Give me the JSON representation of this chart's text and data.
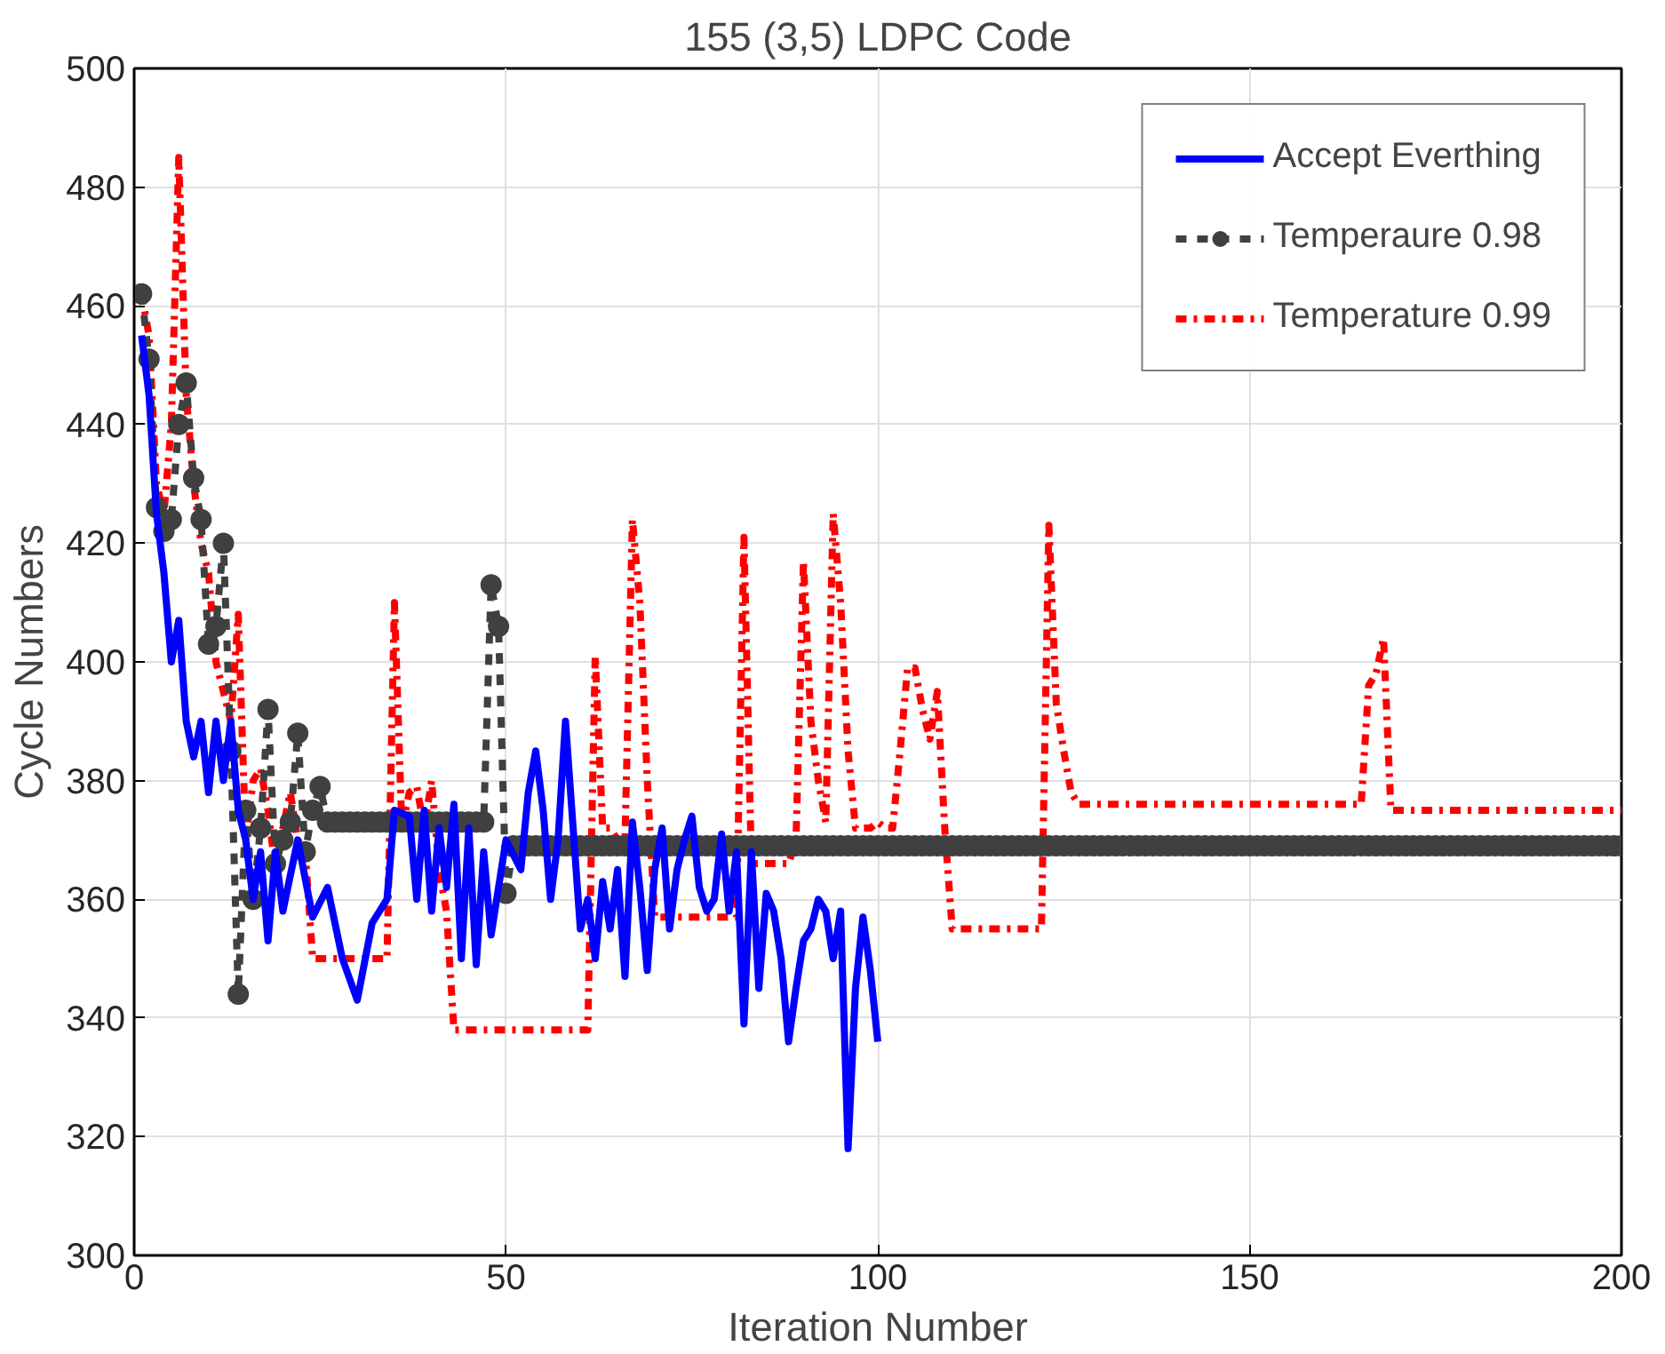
{
  "chart_data": {
    "type": "line",
    "title": "155 (3,5) LDPC Code",
    "xlabel": "Iteration Number",
    "ylabel": "Cycle Numbers",
    "xlim": [
      0,
      200
    ],
    "xticks": [
      0,
      50,
      100,
      150,
      200
    ],
    "ylim": [
      300,
      500
    ],
    "yticks": [
      300,
      320,
      340,
      360,
      380,
      400,
      420,
      440,
      460,
      480,
      500
    ],
    "grid": true,
    "legend": "top right",
    "x": [
      1,
      2,
      3,
      4,
      5,
      6,
      7,
      8,
      9,
      10,
      11,
      12,
      13,
      14,
      15,
      16,
      17,
      18,
      19,
      20,
      21,
      22,
      23,
      24,
      25,
      26,
      27,
      28,
      29,
      30,
      31,
      32,
      33,
      34,
      35,
      36,
      37,
      38,
      39,
      40,
      41,
      42,
      43,
      44,
      45,
      46,
      47,
      48,
      49,
      50,
      51,
      52,
      53,
      54,
      55,
      56,
      57,
      58,
      59,
      60,
      61,
      62,
      63,
      64,
      65,
      66,
      67,
      68,
      69,
      70,
      71,
      72,
      73,
      74,
      75,
      76,
      77,
      78,
      79,
      80,
      81,
      82,
      83,
      84,
      85,
      86,
      87,
      88,
      89,
      90,
      91,
      92,
      93,
      94,
      95,
      96,
      97,
      98,
      99,
      100,
      101,
      102,
      103,
      104,
      105,
      106,
      107,
      108,
      109,
      110,
      111,
      112,
      113,
      114,
      115,
      116,
      117,
      118,
      119,
      120,
      121,
      122,
      123,
      124,
      125,
      126,
      127,
      128,
      129,
      130,
      131,
      132,
      133,
      134,
      135,
      136,
      137,
      138,
      139,
      140,
      141,
      142,
      143,
      144,
      145,
      146,
      147,
      148,
      149,
      150,
      151,
      152,
      153,
      154,
      155,
      156,
      157,
      158,
      159,
      160,
      161,
      162,
      163,
      164,
      165,
      166,
      167,
      168,
      169,
      170,
      171,
      172,
      173,
      174,
      175,
      176,
      177,
      178,
      179,
      180,
      181,
      182,
      183,
      184,
      185,
      186,
      187,
      188,
      189,
      190,
      191,
      192,
      193,
      194,
      195,
      196,
      197,
      198,
      199,
      200
    ],
    "series": [
      {
        "name": "Accept Everthing",
        "color": "#0000ff",
        "line_style": "solid",
        "marker": "none",
        "x": [
          1,
          2,
          3,
          4,
          5,
          6,
          7,
          8,
          9,
          10,
          11,
          12,
          13,
          14,
          15,
          16,
          17,
          18,
          19,
          20,
          22,
          24,
          26,
          28,
          30,
          32,
          34,
          35,
          37,
          38,
          39,
          40,
          41,
          42,
          43,
          44,
          45,
          46,
          47,
          48,
          50,
          52,
          53,
          54,
          55,
          56,
          57,
          58,
          60,
          61,
          62,
          63,
          64,
          65,
          66,
          67,
          68,
          69,
          70,
          71,
          72,
          73,
          74,
          75,
          76,
          77,
          78,
          79,
          80,
          81,
          82,
          83,
          84,
          85,
          86,
          87,
          88,
          89,
          90,
          91,
          92,
          93,
          94,
          95,
          96,
          97,
          98,
          99,
          100
        ],
        "values": [
          455,
          445,
          425,
          415,
          400,
          407,
          390,
          384,
          390,
          378,
          390,
          380,
          390,
          375,
          370,
          360,
          368,
          353,
          368,
          358,
          370,
          357,
          362,
          350,
          343,
          356,
          360,
          375,
          374,
          360,
          375,
          358,
          372,
          362,
          376,
          350,
          372,
          349,
          368,
          354,
          370,
          365,
          378,
          385,
          375,
          360,
          370,
          390,
          355,
          360,
          350,
          363,
          355,
          365,
          347,
          373,
          362,
          348,
          365,
          372,
          355,
          365,
          370,
          374,
          362,
          358,
          360,
          371,
          358,
          368,
          339,
          368,
          345,
          361,
          358,
          350,
          336,
          345,
          353,
          355,
          360,
          358,
          350,
          358,
          318,
          345,
          357,
          348,
          336
        ]
      },
      {
        "name": "Temperaure 0.98",
        "color": "#404040",
        "line_style": "dashed",
        "marker": "circle",
        "values": [
          462,
          451,
          426,
          422,
          424,
          440,
          447,
          431,
          424,
          403,
          406,
          420,
          385,
          344,
          375,
          360,
          372,
          392,
          366,
          370,
          373,
          388,
          368,
          375,
          379,
          373,
          373,
          373,
          373,
          373,
          373,
          373,
          373,
          373,
          373,
          373,
          373,
          373,
          373,
          373,
          373,
          373,
          373,
          373,
          373,
          373,
          373,
          413,
          406,
          361,
          369,
          369,
          369,
          369,
          369,
          369,
          369,
          369,
          369,
          369,
          369,
          369,
          369,
          369,
          369,
          369,
          369,
          369,
          369,
          369,
          369,
          369,
          369,
          369,
          369,
          369,
          369,
          369,
          369,
          369,
          369,
          369,
          369,
          369,
          369,
          369,
          369,
          369,
          369,
          369,
          369,
          369,
          369,
          369,
          369,
          369,
          369,
          369,
          369,
          369,
          369,
          369,
          369,
          369,
          369,
          369,
          369,
          369,
          369,
          369,
          369,
          369,
          369,
          369,
          369,
          369,
          369,
          369,
          369,
          369,
          369,
          369,
          369,
          369,
          369,
          369,
          369,
          369,
          369,
          369,
          369,
          369,
          369,
          369,
          369,
          369,
          369,
          369,
          369,
          369,
          369,
          369,
          369,
          369,
          369,
          369,
          369,
          369,
          369,
          369,
          369,
          369,
          369,
          369,
          369,
          369,
          369,
          369,
          369,
          369,
          369,
          369,
          369,
          369,
          369,
          369,
          369,
          369,
          369,
          369,
          369,
          369,
          369,
          369,
          369,
          369,
          369,
          369,
          369,
          369,
          369,
          369,
          369,
          369,
          369,
          369,
          369,
          369,
          369,
          369,
          369,
          369,
          369,
          369,
          369,
          369,
          369,
          369,
          369,
          369
        ]
      },
      {
        "name": "Temperature 0.99",
        "color": "#ff0000",
        "line_style": "dashdot",
        "marker": "none",
        "values": [
          462,
          455,
          430,
          425,
          440,
          485,
          445,
          430,
          420,
          415,
          400,
          395,
          390,
          408,
          370,
          380,
          382,
          375,
          365,
          372,
          378,
          370,
          368,
          350,
          350,
          350,
          350,
          350,
          350,
          350,
          350,
          350,
          350,
          350,
          410,
          372,
          378,
          379,
          372,
          380,
          365,
          358,
          338,
          338,
          338,
          338,
          338,
          338,
          338,
          338,
          338,
          338,
          338,
          338,
          338,
          338,
          338,
          338,
          338,
          338,
          338,
          401,
          372,
          372,
          370,
          370,
          424,
          410,
          380,
          357,
          357,
          357,
          357,
          357,
          357,
          357,
          357,
          357,
          357,
          357,
          357,
          421,
          366,
          366,
          366,
          366,
          366,
          366,
          370,
          417,
          390,
          380,
          373,
          425,
          410,
          385,
          372,
          372,
          372,
          373,
          372,
          372,
          385,
          399,
          399,
          392,
          387,
          395,
          372,
          355,
          355,
          355,
          355,
          355,
          355,
          355,
          355,
          355,
          355,
          355,
          355,
          355,
          423,
          393,
          385,
          378,
          376,
          376,
          376,
          376,
          376,
          376,
          376,
          376,
          376,
          376,
          376,
          376,
          376,
          376,
          376,
          376,
          376,
          376,
          376,
          376,
          376,
          376,
          376,
          376,
          376,
          376,
          376,
          376,
          376,
          376,
          376,
          376,
          376,
          376,
          376,
          376,
          376,
          376,
          376,
          396,
          398,
          404,
          375,
          375,
          375,
          375,
          375,
          375,
          375,
          375,
          375,
          375,
          375,
          375,
          375,
          375,
          375,
          375,
          375,
          375,
          375,
          375,
          375,
          375,
          375,
          375,
          375,
          375,
          375,
          375,
          375,
          375,
          375,
          375
        ]
      }
    ]
  }
}
